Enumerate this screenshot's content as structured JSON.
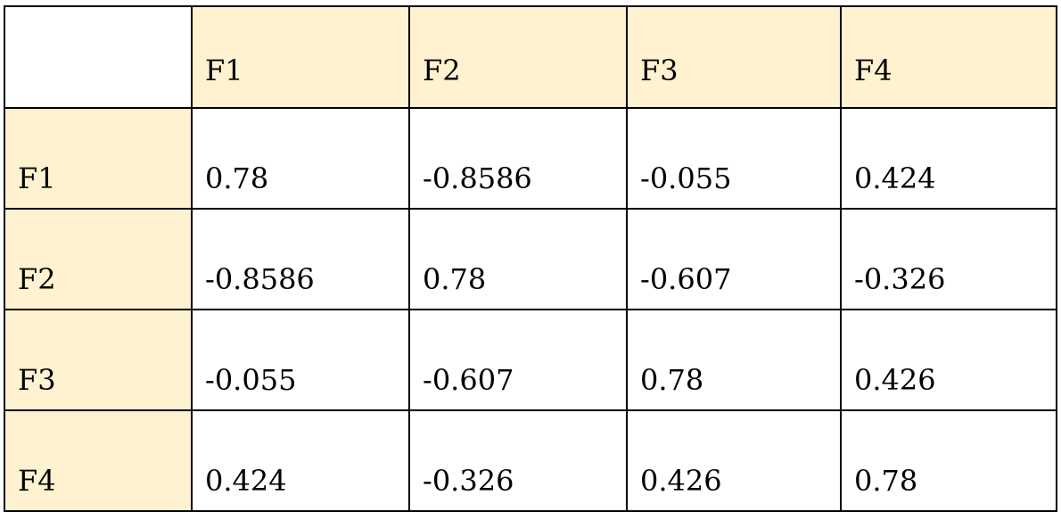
{
  "colors": {
    "header_background": "#fef2d0",
    "cell_background": "#ffffff",
    "border": "#000000"
  },
  "chart_data": {
    "type": "table",
    "title": "",
    "columns": [
      "F1",
      "F2",
      "F3",
      "F4"
    ],
    "rows": [
      {
        "label": "F1",
        "values": [
          "0.78",
          "-0.8586",
          "-0.055",
          "0.424"
        ]
      },
      {
        "label": "F2",
        "values": [
          "-0.8586",
          "0.78",
          "-0.607",
          "-0.326"
        ]
      },
      {
        "label": "F3",
        "values": [
          "-0.055",
          "-0.607",
          "0.78",
          "0.426"
        ]
      },
      {
        "label": "F4",
        "values": [
          "0.424",
          "-0.326",
          "0.426",
          "0.78"
        ]
      }
    ]
  }
}
